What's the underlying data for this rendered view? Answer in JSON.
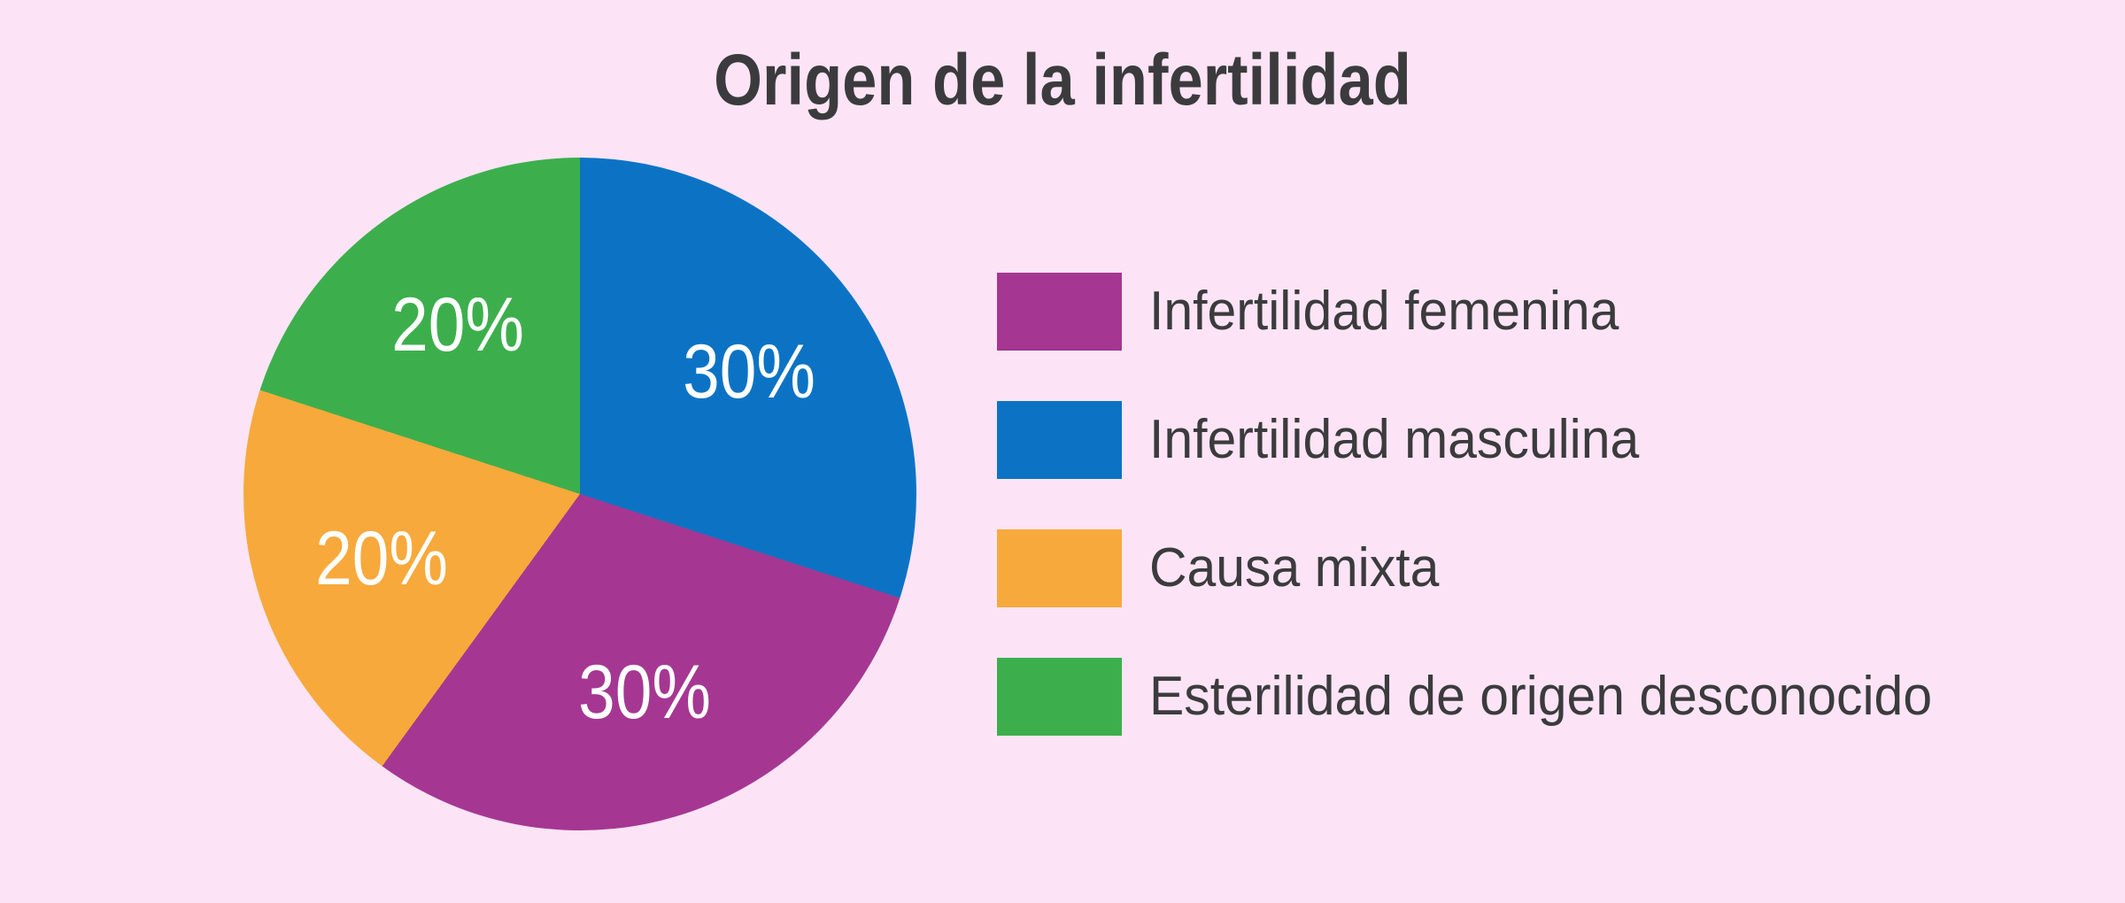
{
  "page": {
    "background": "#fce4f6",
    "title": "Origen de la infertilidad",
    "title_color": "#3b3b3d",
    "slice_label_color": "#ffffff"
  },
  "chart_data": {
    "type": "pie",
    "title": "Origen de la infertilidad",
    "unit": "%",
    "rotation": "clockwise-from-top",
    "legend_position": "right",
    "slices": [
      {
        "label": "Infertilidad masculina",
        "value": 30,
        "display": "30%",
        "color": "#0c73c4"
      },
      {
        "label": "Infertilidad femenina",
        "value": 30,
        "display": "30%",
        "color": "#a53792"
      },
      {
        "label": "Causa mixta",
        "value": 20,
        "display": "20%",
        "color": "#f7a93b"
      },
      {
        "label": "Esterilidad de origen desconocido",
        "value": 20,
        "display": "20%",
        "color": "#3caf4c"
      }
    ],
    "legend_order": [
      "Infertilidad femenina",
      "Infertilidad masculina",
      "Causa mixta",
      "Esterilidad de origen desconocido"
    ]
  }
}
